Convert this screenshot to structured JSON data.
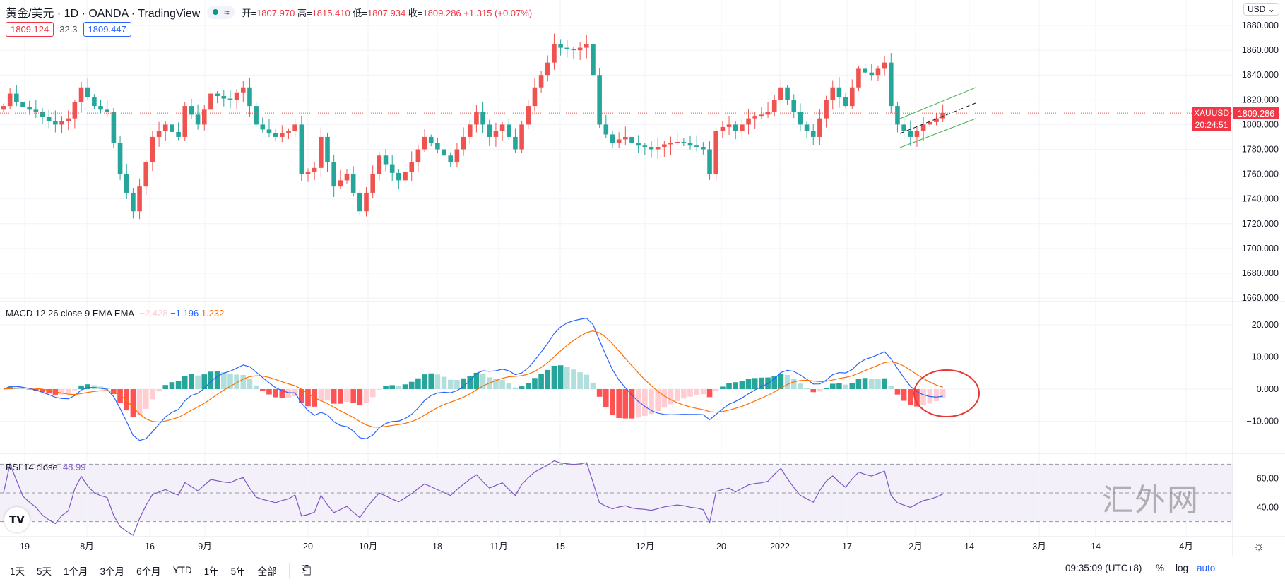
{
  "header": {
    "title": "黄金/美元 · 1D · OANDA · TradingView",
    "open_label": "开=",
    "open": "1807.970",
    "high_label": "高=",
    "high": "1815.410",
    "low_label": "低=",
    "low": "1807.934",
    "close_label": "收=",
    "close": "1809.286",
    "change": "+1.315 (+0.07%)",
    "bid": "1809.124",
    "spread": "32.3",
    "ask": "1809.447"
  },
  "price_axis": {
    "currency": "USD",
    "ticks": [
      "1880.000",
      "1860.000",
      "1840.000",
      "1820.000",
      "1800.000",
      "1780.000",
      "1760.000",
      "1740.000",
      "1720.000",
      "1700.000",
      "1680.000",
      "1660.000"
    ],
    "symbol": "XAUUSD",
    "last_price": "1809.286",
    "countdown": "20:24:51"
  },
  "macd": {
    "label": "MACD 12 26 close 9 EMA EMA",
    "hist": "−2.428",
    "macd": "−1.196",
    "signal": "1.232",
    "ticks": [
      "20.000",
      "10.000",
      "0.000",
      "−10.000"
    ]
  },
  "rsi": {
    "label": "RSI 14 close",
    "value": "48.99",
    "ticks": [
      "60.00",
      "40.00"
    ]
  },
  "time_axis": [
    "19",
    "8月",
    "16",
    "9月",
    "20",
    "10月",
    "18",
    "11月",
    "15",
    "12月",
    "20",
    "2022",
    "17",
    "2月",
    "14",
    "3月",
    "14",
    "4月"
  ],
  "toolbar": {
    "ranges": [
      "1天",
      "5天",
      "1个月",
      "3个月",
      "6个月",
      "YTD",
      "1年",
      "5年",
      "全部"
    ],
    "time": "09:35:09 (UTC+8)",
    "percent": "%",
    "log": "log",
    "auto": "auto"
  },
  "watermark": "汇外网",
  "logo": "TV",
  "colors": {
    "up": "#ef5350",
    "down": "#26a69a",
    "macd": "#2962ff",
    "signal": "#ff6d00",
    "rsi": "#7e57c2",
    "channel": "#4caf50",
    "highlight": "#e53935"
  },
  "chart_data": {
    "type": "candlestick",
    "symbol": "XAUUSD",
    "interval": "1D",
    "ylim": [
      1660,
      1890
    ],
    "closes": [
      1815,
      1825,
      1818,
      1814,
      1812,
      1810,
      1806,
      1803,
      1800,
      1803,
      1805,
      1818,
      1830,
      1822,
      1815,
      1812,
      1810,
      1785,
      1760,
      1745,
      1730,
      1750,
      1770,
      1790,
      1795,
      1800,
      1794,
      1790,
      1815,
      1808,
      1800,
      1812,
      1825,
      1823,
      1821,
      1820,
      1826,
      1830,
      1815,
      1800,
      1796,
      1793,
      1790,
      1793,
      1795,
      1800,
      1760,
      1762,
      1765,
      1790,
      1770,
      1750,
      1755,
      1760,
      1745,
      1730,
      1745,
      1760,
      1775,
      1768,
      1761,
      1755,
      1762,
      1770,
      1780,
      1790,
      1785,
      1780,
      1775,
      1770,
      1780,
      1790,
      1800,
      1810,
      1800,
      1790,
      1795,
      1800,
      1790,
      1780,
      1800,
      1815,
      1830,
      1840,
      1850,
      1865,
      1862,
      1861,
      1860,
      1862,
      1865,
      1840,
      1800,
      1792,
      1785,
      1788,
      1790,
      1785,
      1783,
      1782,
      1780,
      1782,
      1784,
      1785,
      1786,
      1785,
      1783,
      1782,
      1780,
      1760,
      1795,
      1798,
      1800,
      1795,
      1800,
      1805,
      1807,
      1808,
      1810,
      1820,
      1830,
      1820,
      1810,
      1800,
      1795,
      1790,
      1805,
      1820,
      1830,
      1822,
      1815,
      1830,
      1845,
      1842,
      1840,
      1845,
      1850,
      1815,
      1800,
      1795,
      1790,
      1795,
      1800,
      1802,
      1805,
      1809.286
    ]
  }
}
